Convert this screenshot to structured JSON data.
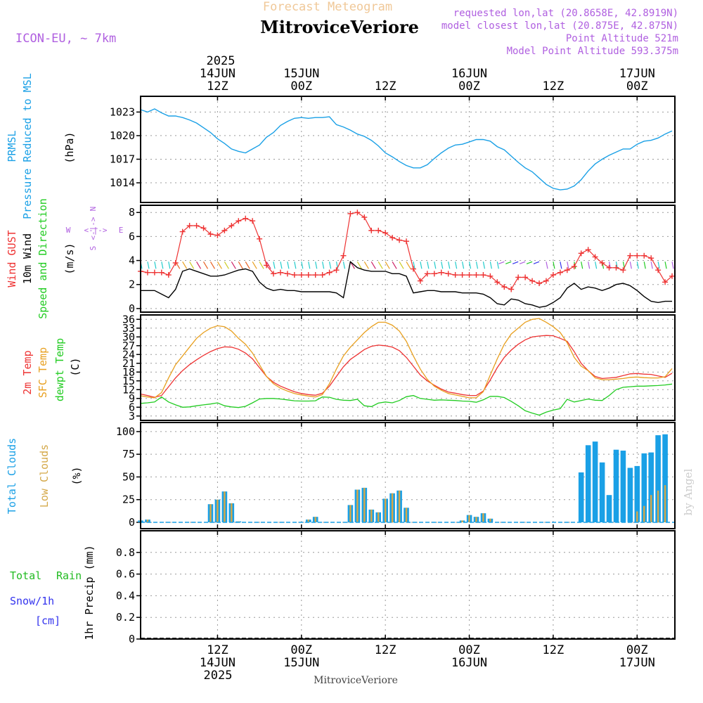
{
  "header": {
    "banner": "Forecast Meteogram",
    "station": "MitroviceVeriore",
    "model": "ICON-EU, ~ 7km",
    "requested": "requested lon,lat (20.8658E, 42.8919N)",
    "closest": "model closest lon,lat (20.875E, 42.875N)",
    "altitude": "Point Altitude 521m",
    "model_altitude": "Model Point Altitude 593.375m",
    "footer_station": "MitroviceVeriore",
    "watermark": "by Angel"
  },
  "time_axis": {
    "top_year": "2025",
    "bottom_year": "2025",
    "ticks": [
      {
        "t": 12,
        "hour": "12Z",
        "date": "14JUN"
      },
      {
        "t": 24,
        "hour": "00Z",
        "date": "15JUN"
      },
      {
        "t": 36,
        "hour": "12Z",
        "date": ""
      },
      {
        "t": 48,
        "hour": "00Z",
        "date": "16JUN"
      },
      {
        "t": 60,
        "hour": "12Z",
        "date": ""
      },
      {
        "t": 72,
        "hour": "00Z",
        "date": "17JUN"
      }
    ],
    "range_hours": [
      1,
      77.4
    ]
  },
  "colors": {
    "pressure": "#1aa0e6",
    "gust": "#ee3333",
    "wind": "#000000",
    "temp": "#ee3333",
    "sfc": "#e8a020",
    "dewpt": "#22cc22",
    "total_clouds": "#1aa0e6",
    "low_clouds": "#d4a848",
    "rain": "#22bb22",
    "snow": "#3333ee",
    "purple": "#b060e0",
    "grid": "#999999"
  },
  "labels": {
    "pressure": [
      "PRMSL",
      "Pressure Reduced to MSL",
      "(hPa)"
    ],
    "wind": [
      "Wind GUST",
      "10m Wind",
      "Speed and Direction",
      "(m/s)"
    ],
    "compass": {
      "n": "N",
      "s": "S",
      "w": "W",
      "e": "E",
      "mid": "<-|->",
      "mid_v": "<-|->"
    },
    "temp": [
      "2m Temp",
      "SFC Temp",
      "dewpt Temp",
      "(C)"
    ],
    "clouds": [
      "Total Clouds",
      "Low Clouds",
      "(%)"
    ],
    "precip": [
      "Total",
      "Rain",
      "Snow/1h",
      "[cm]",
      "1hr Precip (mm)"
    ]
  },
  "chart_data": [
    {
      "type": "line",
      "panel": "pressure",
      "ylim": [
        1011.5,
        1025
      ],
      "yticks": [
        1014,
        1017,
        1020,
        1023
      ],
      "x": [
        1,
        2,
        3,
        4,
        5,
        6,
        7,
        8,
        9,
        10,
        11,
        12,
        13,
        14,
        15,
        16,
        17,
        18,
        19,
        20,
        21,
        22,
        23,
        24,
        25,
        26,
        27,
        28,
        29,
        30,
        31,
        32,
        33,
        34,
        35,
        36,
        37,
        38,
        39,
        40,
        41,
        42,
        43,
        44,
        45,
        46,
        47,
        48,
        49,
        50,
        51,
        52,
        53,
        54,
        55,
        56,
        57,
        58,
        59,
        60,
        61,
        62,
        63,
        64,
        65,
        66,
        67,
        68,
        69,
        70,
        71,
        72,
        73,
        74,
        75,
        76,
        77
      ],
      "series": [
        {
          "values": [
            1023.3,
            1023,
            1023.4,
            1022.9,
            1022.5,
            1022.5,
            1022.3,
            1022,
            1021.6,
            1021,
            1020.4,
            1019.6,
            1019,
            1018.3,
            1018,
            1017.8,
            1018.3,
            1018.8,
            1019.8,
            1020.4,
            1021.3,
            1021.8,
            1022.2,
            1022.3,
            1022.2,
            1022.3,
            1022.3,
            1022.4,
            1021.4,
            1021.1,
            1020.7,
            1020.2,
            1019.9,
            1019.4,
            1018.7,
            1017.8,
            1017.3,
            1016.7,
            1016.2,
            1015.9,
            1015.9,
            1016.3,
            1017.1,
            1017.8,
            1018.4,
            1018.8,
            1018.9,
            1019.2,
            1019.5,
            1019.5,
            1019.3,
            1018.6,
            1018.2,
            1017.4,
            1016.6,
            1015.9,
            1015.4,
            1014.6,
            1013.8,
            1013.3,
            1013.1,
            1013.2,
            1013.6,
            1014.4,
            1015.5,
            1016.4,
            1017,
            1017.5,
            1017.9,
            1018.3,
            1018.3,
            1018.9,
            1019.3,
            1019.4,
            1019.7,
            1020.2,
            1020.6
          ]
        }
      ]
    },
    {
      "type": "line",
      "panel": "wind",
      "ylim": [
        -0.3,
        8.6
      ],
      "yticks": [
        0,
        2,
        4,
        6,
        8
      ],
      "x": [
        1,
        2,
        3,
        4,
        5,
        6,
        7,
        8,
        9,
        10,
        11,
        12,
        13,
        14,
        15,
        16,
        17,
        18,
        19,
        20,
        21,
        22,
        23,
        24,
        25,
        26,
        27,
        28,
        29,
        30,
        31,
        32,
        33,
        34,
        35,
        36,
        37,
        38,
        39,
        40,
        41,
        42,
        43,
        44,
        45,
        46,
        47,
        48,
        49,
        50,
        51,
        52,
        53,
        54,
        55,
        56,
        57,
        58,
        59,
        60,
        61,
        62,
        63,
        64,
        65,
        66,
        67,
        68,
        69,
        70,
        71,
        72,
        73,
        74,
        75,
        76,
        77
      ],
      "series": [
        {
          "name": "Wind GUST",
          "values": [
            3.1,
            3.0,
            3.0,
            3.0,
            2.8,
            3.8,
            6.4,
            6.9,
            6.9,
            6.7,
            6.2,
            6.1,
            6.5,
            6.9,
            7.3,
            7.5,
            7.3,
            5.8,
            3.6,
            2.9,
            3.0,
            2.9,
            2.8,
            2.8,
            2.8,
            2.8,
            2.8,
            3.0,
            3.2,
            4.4,
            7.9,
            8.0,
            7.6,
            6.5,
            6.5,
            6.3,
            5.9,
            5.7,
            5.6,
            3.3,
            2.3,
            2.9,
            2.9,
            3.0,
            2.9,
            2.8,
            2.8,
            2.8,
            2.8,
            2.8,
            2.7,
            2.2,
            1.8,
            1.6,
            2.6,
            2.6,
            2.3,
            2.1,
            2.3,
            2.8,
            3.0,
            3.2,
            3.5,
            4.6,
            4.9,
            4.3,
            3.8,
            3.4,
            3.4,
            3.2,
            4.4,
            4.4,
            4.4,
            4.2,
            3.2,
            2.2,
            2.7
          ]
        },
        {
          "name": "10m Wind",
          "values": [
            1.5,
            1.5,
            1.5,
            1.2,
            0.9,
            1.6,
            3.1,
            3.3,
            3.1,
            2.9,
            2.7,
            2.7,
            2.8,
            3.0,
            3.2,
            3.3,
            3.1,
            2.2,
            1.7,
            1.5,
            1.6,
            1.5,
            1.5,
            1.4,
            1.4,
            1.4,
            1.4,
            1.4,
            1.3,
            0.9,
            3.9,
            3.4,
            3.2,
            3.1,
            3.1,
            3.1,
            2.9,
            2.9,
            2.7,
            1.3,
            1.4,
            1.5,
            1.5,
            1.4,
            1.4,
            1.4,
            1.3,
            1.3,
            1.3,
            1.2,
            0.9,
            0.4,
            0.3,
            0.8,
            0.7,
            0.4,
            0.3,
            0.1,
            0.2,
            0.5,
            0.9,
            1.7,
            2.1,
            1.6,
            1.8,
            1.7,
            1.5,
            1.7,
            2.0,
            2.1,
            1.9,
            1.5,
            1.0,
            0.6,
            0.5,
            0.6,
            0.6
          ]
        }
      ]
    },
    {
      "type": "line",
      "panel": "temperature",
      "ylim": [
        1.5,
        37.5
      ],
      "yticks": [
        3,
        6,
        9,
        12,
        15,
        18,
        21,
        24,
        27,
        30,
        33,
        36
      ],
      "x": [
        1,
        2,
        3,
        4,
        5,
        6,
        7,
        8,
        9,
        10,
        11,
        12,
        13,
        14,
        15,
        16,
        17,
        18,
        19,
        20,
        21,
        22,
        23,
        24,
        25,
        26,
        27,
        28,
        29,
        30,
        31,
        32,
        33,
        34,
        35,
        36,
        37,
        38,
        39,
        40,
        41,
        42,
        43,
        44,
        45,
        46,
        47,
        48,
        49,
        50,
        51,
        52,
        53,
        54,
        55,
        56,
        57,
        58,
        59,
        60,
        61,
        62,
        63,
        64,
        65,
        66,
        67,
        68,
        69,
        70,
        71,
        72,
        73,
        74,
        75,
        76,
        77
      ],
      "series": [
        {
          "name": "2m Temp",
          "values": [
            10.5,
            10,
            9.4,
            10,
            13,
            16,
            18.5,
            20.5,
            22.2,
            23.7,
            25,
            26,
            26.6,
            26.5,
            25.8,
            24.5,
            22.5,
            19.5,
            16.5,
            14.5,
            13.2,
            12.2,
            11.3,
            10.7,
            10.3,
            10.1,
            10.8,
            13.2,
            16.5,
            19.8,
            22.3,
            24,
            25.7,
            26.8,
            27.2,
            27,
            26.5,
            25.3,
            23,
            20,
            17,
            15,
            13.5,
            12.2,
            11.2,
            10.8,
            10.3,
            10,
            10,
            11.5,
            15.3,
            19.5,
            23,
            25.5,
            27.5,
            29,
            30,
            30.3,
            30.5,
            30.4,
            29.5,
            28.5,
            25,
            21,
            18.5,
            16.5,
            15.8,
            16,
            16.2,
            16.8,
            17.4,
            17.5,
            17.3,
            17.2,
            16.7,
            16.2,
            17.6
          ]
        },
        {
          "name": "SFC Temp",
          "values": [
            9.9,
            9.5,
            9.2,
            11,
            16,
            20.5,
            23.5,
            26.5,
            29.5,
            31.5,
            33,
            33.8,
            33.5,
            32,
            29.5,
            27.5,
            24.5,
            20.5,
            16.5,
            14,
            12.5,
            11.5,
            10.7,
            10.2,
            9.8,
            9.5,
            10.3,
            14,
            19,
            23.5,
            26.5,
            29,
            31.5,
            33.5,
            35,
            35,
            34,
            32,
            28.5,
            23.5,
            19,
            15.5,
            13.2,
            11.8,
            10.7,
            10.2,
            9.7,
            9.2,
            9.2,
            11.3,
            17,
            22.5,
            27.5,
            31,
            33,
            35,
            36,
            36.3,
            35,
            33.5,
            31.5,
            28,
            23,
            20,
            18.5,
            16,
            15.4,
            15.4,
            15.6,
            15.8,
            16.2,
            16.3,
            16.1,
            16,
            16,
            16.4,
            19.2
          ]
        },
        {
          "name": "dewpt Temp",
          "values": [
            7.3,
            7.5,
            7.8,
            9.5,
            7.8,
            6.8,
            6,
            6.1,
            6.5,
            6.8,
            7.1,
            7.5,
            6.5,
            6.1,
            5.9,
            6.3,
            7.5,
            8.8,
            9,
            9,
            8.8,
            8.5,
            8.2,
            8.1,
            8.1,
            8.2,
            9.5,
            9.4,
            8.7,
            8.4,
            8.3,
            8.7,
            6.5,
            6.2,
            7.4,
            7.8,
            7.5,
            8.3,
            9.6,
            10,
            9,
            8.7,
            8.4,
            8.5,
            8.4,
            8.3,
            8.1,
            8,
            7.7,
            8.5,
            9.7,
            9.7,
            9.3,
            8,
            6.5,
            4.8,
            4,
            3.3,
            4.3,
            5,
            5.5,
            8.7,
            7.8,
            8.3,
            8.8,
            8.4,
            8.3,
            10,
            12,
            12.8,
            13,
            13.2,
            13.2,
            13.3,
            13.4,
            13.6,
            13.9
          ]
        }
      ]
    },
    {
      "type": "bar",
      "panel": "clouds",
      "ylim": [
        -7,
        110
      ],
      "yticks": [
        0,
        25,
        50,
        75,
        100
      ],
      "x": [
        1,
        2,
        3,
        4,
        5,
        6,
        7,
        8,
        9,
        10,
        11,
        12,
        13,
        14,
        15,
        16,
        17,
        18,
        19,
        20,
        21,
        22,
        23,
        24,
        25,
        26,
        27,
        28,
        29,
        30,
        31,
        32,
        33,
        34,
        35,
        36,
        37,
        38,
        39,
        40,
        41,
        42,
        43,
        44,
        45,
        46,
        47,
        48,
        49,
        50,
        51,
        52,
        53,
        54,
        55,
        56,
        57,
        58,
        59,
        60,
        61,
        62,
        63,
        64,
        65,
        66,
        67,
        68,
        69,
        70,
        71,
        72,
        73,
        74,
        75,
        76,
        77
      ],
      "series": [
        {
          "name": "Total Clouds",
          "values": [
            2,
            3,
            0,
            0,
            0,
            0,
            0,
            0,
            0,
            0,
            20,
            25,
            34,
            21,
            1,
            0,
            0,
            0,
            0,
            0,
            0,
            0,
            0,
            0,
            3,
            6,
            0,
            0,
            0,
            0,
            19,
            36,
            38,
            14,
            11,
            26,
            32,
            35,
            16,
            0,
            0,
            0,
            0,
            0,
            0,
            0,
            2,
            8,
            6,
            10,
            4,
            0,
            0,
            0,
            0,
            0,
            0,
            0,
            0,
            0,
            0,
            0,
            0,
            55,
            85,
            89,
            66,
            30,
            80,
            79,
            60,
            62,
            76,
            77,
            96,
            97,
            0
          ]
        },
        {
          "name": "Low Clouds",
          "values": [
            2,
            3,
            0,
            0,
            0,
            0,
            0,
            0,
            0,
            0,
            20,
            25,
            34,
            21,
            1,
            0,
            0,
            0,
            0,
            0,
            0,
            0,
            0,
            0,
            3,
            6,
            0,
            0,
            0,
            0,
            19,
            36,
            38,
            14,
            11,
            26,
            32,
            35,
            16,
            0,
            0,
            0,
            0,
            0,
            0,
            0,
            2,
            8,
            6,
            10,
            4,
            0,
            0,
            0,
            0,
            0,
            0,
            0,
            0,
            0,
            0,
            0,
            0,
            0,
            0,
            0,
            0,
            0,
            0,
            0,
            0,
            12,
            18,
            30,
            35,
            41,
            0
          ]
        }
      ]
    },
    {
      "type": "bar",
      "panel": "precipitation",
      "ylim": [
        0,
        1.0
      ],
      "yticks": [
        "0",
        "0.2",
        "0.4",
        "0.6",
        "0.8"
      ],
      "x": [],
      "series": [
        {
          "name": "Total Rain",
          "values": []
        }
      ]
    }
  ]
}
